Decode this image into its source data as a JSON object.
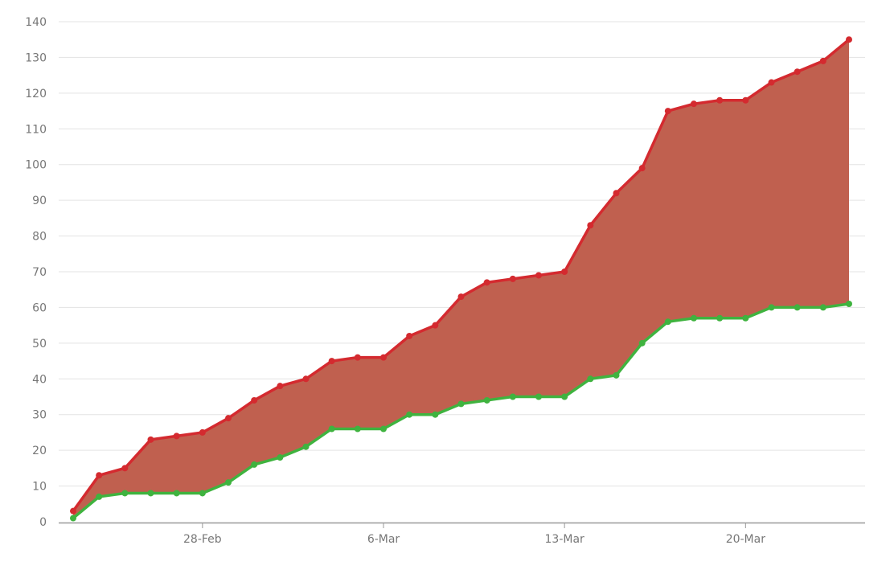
{
  "chart_data": {
    "type": "area",
    "title": "",
    "xlabel": "",
    "ylabel": "",
    "x_tick_labels": [
      "28-Feb",
      "6-Mar",
      "13-Mar",
      "20-Mar"
    ],
    "x_tick_indices": [
      5,
      12,
      19,
      26
    ],
    "y_ticks": [
      0,
      10,
      20,
      30,
      40,
      50,
      60,
      70,
      80,
      90,
      100,
      110,
      120,
      130,
      140
    ],
    "ylim": [
      0,
      140
    ],
    "grid": true,
    "legend": "none",
    "fill_between_series": true,
    "fill_color": "#c0604f",
    "series": [
      {
        "color": "#d42a2f",
        "values": [
          3,
          13,
          15,
          23,
          24,
          25,
          29,
          34,
          38,
          40,
          45,
          46,
          46,
          52,
          55,
          63,
          67,
          68,
          69,
          70,
          83,
          92,
          99,
          115,
          117,
          118,
          118,
          123,
          126,
          129,
          135
        ]
      },
      {
        "color": "#3fb33f",
        "values": [
          1,
          7,
          8,
          8,
          8,
          8,
          11,
          16,
          18,
          21,
          26,
          26,
          26,
          30,
          30,
          33,
          34,
          35,
          35,
          35,
          40,
          41,
          50,
          56,
          57,
          57,
          57,
          60,
          60,
          60,
          61
        ]
      }
    ]
  }
}
